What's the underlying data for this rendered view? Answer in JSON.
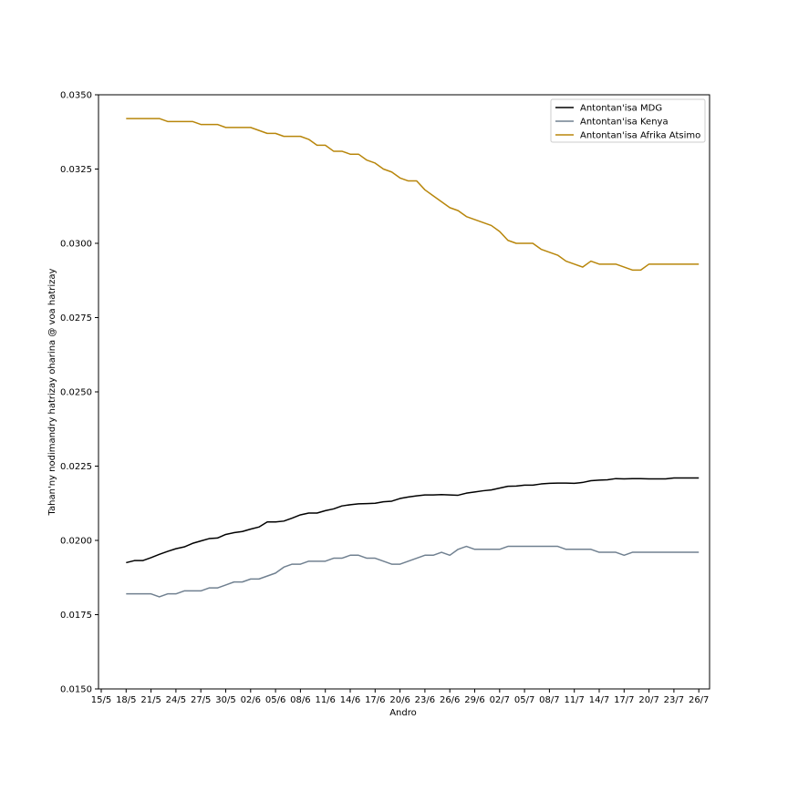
{
  "chart_data": {
    "type": "line",
    "title": "",
    "xlabel": "Andro",
    "ylabel": "Tahan'ny nodimandry hatrizay oharina @ voa hatrizay",
    "ylim": [
      0.015,
      0.035
    ],
    "yticks": [
      "0.0150",
      "0.0175",
      "0.0200",
      "0.0225",
      "0.0250",
      "0.0275",
      "0.0300",
      "0.0325",
      "0.0350"
    ],
    "xticks": [
      "15/5",
      "18/5",
      "21/5",
      "24/5",
      "27/5",
      "30/5",
      "02/6",
      "05/6",
      "08/6",
      "11/6",
      "14/6",
      "17/6",
      "20/6",
      "23/6",
      "26/6",
      "29/6",
      "02/7",
      "05/7",
      "08/7",
      "11/7",
      "14/7",
      "17/7",
      "20/7",
      "23/7",
      "26/7"
    ],
    "x_start": "18/5",
    "legend_position": "top-right",
    "grid": false,
    "series": [
      {
        "name": "Antontan'isa MDG",
        "color": "#000000",
        "values": [
          0.01925,
          0.01932,
          0.01932,
          0.01942,
          0.01953,
          0.01963,
          0.01972,
          0.01978,
          0.0199,
          0.01998,
          0.02006,
          0.02008,
          0.0202,
          0.02026,
          0.0203,
          0.02038,
          0.02045,
          0.02062,
          0.02062,
          0.02065,
          0.02075,
          0.02086,
          0.02092,
          0.02092,
          0.021,
          0.02106,
          0.02116,
          0.0212,
          0.02123,
          0.02124,
          0.02125,
          0.0213,
          0.02132,
          0.02141,
          0.02146,
          0.0215,
          0.02153,
          0.02153,
          0.02154,
          0.02153,
          0.02152,
          0.02159,
          0.02163,
          0.02167,
          0.0217,
          0.02176,
          0.02182,
          0.02183,
          0.02186,
          0.02186,
          0.0219,
          0.02192,
          0.02193,
          0.02193,
          0.02192,
          0.02195,
          0.02201,
          0.02203,
          0.02204,
          0.02208,
          0.02207,
          0.02208,
          0.02208,
          0.02207,
          0.02207,
          0.02207,
          0.0221,
          0.0221,
          0.0221,
          0.0221
        ]
      },
      {
        "name": "Antontan'isa Kenya",
        "color": "#708090",
        "values": [
          0.0182,
          0.0182,
          0.0182,
          0.0182,
          0.0181,
          0.0182,
          0.0182,
          0.0183,
          0.0183,
          0.0183,
          0.0184,
          0.0184,
          0.0185,
          0.0186,
          0.0186,
          0.0187,
          0.0187,
          0.0188,
          0.0189,
          0.0191,
          0.0192,
          0.0192,
          0.0193,
          0.0193,
          0.0193,
          0.0194,
          0.0194,
          0.0195,
          0.0195,
          0.0194,
          0.0194,
          0.0193,
          0.0192,
          0.0192,
          0.0193,
          0.0194,
          0.0195,
          0.0195,
          0.0196,
          0.0195,
          0.0197,
          0.0198,
          0.0197,
          0.0197,
          0.0197,
          0.0197,
          0.0198,
          0.0198,
          0.0198,
          0.0198,
          0.0198,
          0.0198,
          0.0198,
          0.0197,
          0.0197,
          0.0197,
          0.0197,
          0.0196,
          0.0196,
          0.0196,
          0.0195,
          0.0196,
          0.0196,
          0.0196,
          0.0196,
          0.0196,
          0.0196,
          0.0196,
          0.0196,
          0.0196
        ]
      },
      {
        "name": "Antontan'isa Afrika Atsimo",
        "color": "#b8860b",
        "values": [
          0.0342,
          0.0342,
          0.0342,
          0.0342,
          0.0342,
          0.0341,
          0.0341,
          0.0341,
          0.0341,
          0.034,
          0.034,
          0.034,
          0.0339,
          0.0339,
          0.0339,
          0.0339,
          0.0338,
          0.0337,
          0.0337,
          0.0336,
          0.0336,
          0.0336,
          0.0335,
          0.0333,
          0.0333,
          0.0331,
          0.0331,
          0.033,
          0.033,
          0.0328,
          0.0327,
          0.0325,
          0.0324,
          0.0322,
          0.0321,
          0.0321,
          0.0318,
          0.0316,
          0.0314,
          0.0312,
          0.0311,
          0.0309,
          0.0308,
          0.0307,
          0.0306,
          0.0304,
          0.0301,
          0.03,
          0.03,
          0.03,
          0.0298,
          0.0297,
          0.0296,
          0.0294,
          0.0293,
          0.0292,
          0.0294,
          0.0293,
          0.0293,
          0.0293,
          0.0292,
          0.0291,
          0.0291,
          0.0293,
          0.0293,
          0.0293,
          0.0293,
          0.0293,
          0.0293,
          0.0293
        ]
      }
    ]
  }
}
